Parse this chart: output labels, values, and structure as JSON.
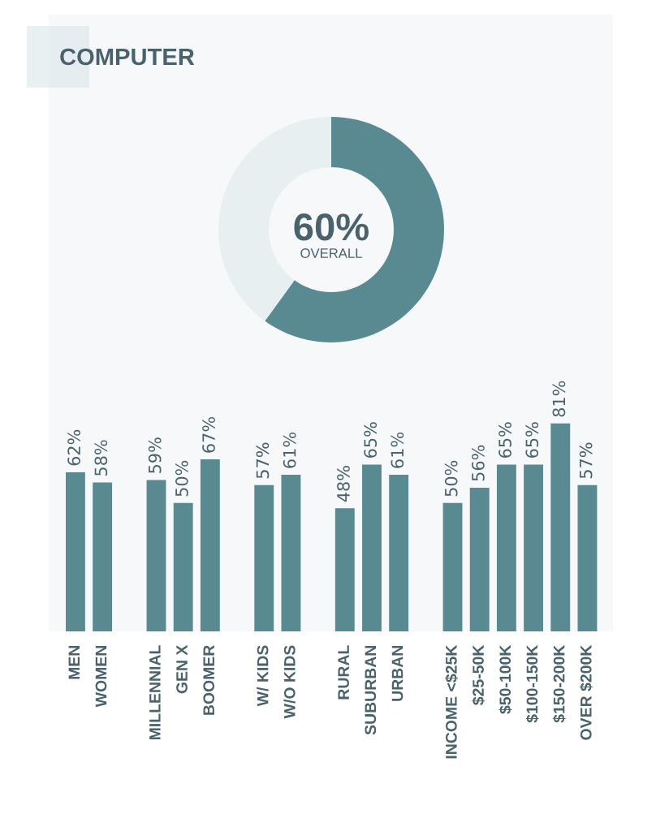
{
  "chart_data": [
    {
      "type": "donut",
      "title": "COMPUTER",
      "categories": [
        null,
        null
      ],
      "values": [
        60,
        40
      ],
      "colors": [
        "#5a8a91",
        "#e7eff1"
      ],
      "value_labels": [
        "60%",
        null
      ],
      "annotations": [
        "OVERALL"
      ]
    },
    {
      "type": "bar",
      "categories": [
        "MEN",
        "WOMEN",
        null,
        "MILLENNIAL",
        "GEN X",
        "BOOMER",
        null,
        "W/ KIDS",
        "W/O KIDS",
        null,
        "RURAL",
        "SUBURBAN",
        "URBAN",
        null,
        "INCOME <$25K",
        "$25-50K",
        "$50-100K",
        "$100-150K",
        "$150-200K",
        "OVER $200K"
      ],
      "values": [
        62,
        58,
        null,
        59,
        50,
        67,
        null,
        57,
        61,
        null,
        48,
        65,
        61,
        null,
        50,
        56,
        65,
        65,
        81,
        57
      ],
      "value_labels": [
        "62%",
        "58%",
        null,
        "59%",
        "50%",
        "67%",
        null,
        "57%",
        "61%",
        null,
        "48%",
        "65%",
        "61%",
        null,
        "50%",
        "56%",
        "65%",
        "65%",
        "81%",
        "57%"
      ],
      "color": "#5a8a91"
    }
  ]
}
